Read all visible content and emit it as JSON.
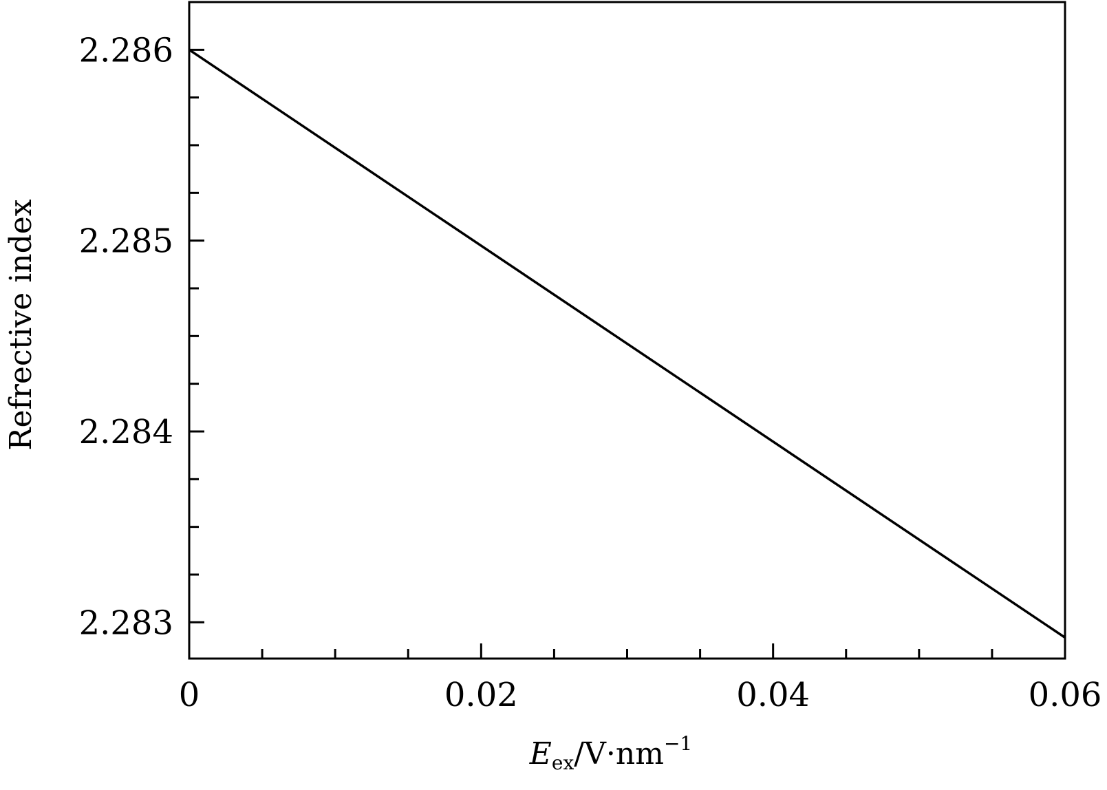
{
  "chart_data": {
    "type": "line",
    "title": "",
    "xlabel": {
      "main": "E",
      "sub": "ex",
      "rest": "/V·nm",
      "sup": "−1"
    },
    "ylabel": "Refrective index",
    "xlim": [
      0,
      0.06
    ],
    "ylim": [
      2.28281,
      2.28625
    ],
    "x_ticks": [
      0,
      0.02,
      0.04,
      0.06
    ],
    "x_tick_labels": [
      "0",
      "0.02",
      "0.04",
      "0.06"
    ],
    "x_minor_ticks": [
      0.005,
      0.01,
      0.015,
      0.025,
      0.03,
      0.035,
      0.045,
      0.05,
      0.055
    ],
    "y_ticks": [
      2.283,
      2.284,
      2.285,
      2.286
    ],
    "y_tick_labels": [
      "2.283",
      "2.284",
      "2.285",
      "2.286"
    ],
    "y_minor_ticks": [
      2.28325,
      2.2835,
      2.28375,
      2.28425,
      2.2845,
      2.28475,
      2.28525,
      2.2855,
      2.28575
    ],
    "grid": false,
    "series": [
      {
        "x": [
          0,
          0.06
        ],
        "y": [
          2.286,
          2.28292
        ],
        "color": "#000000"
      }
    ]
  }
}
